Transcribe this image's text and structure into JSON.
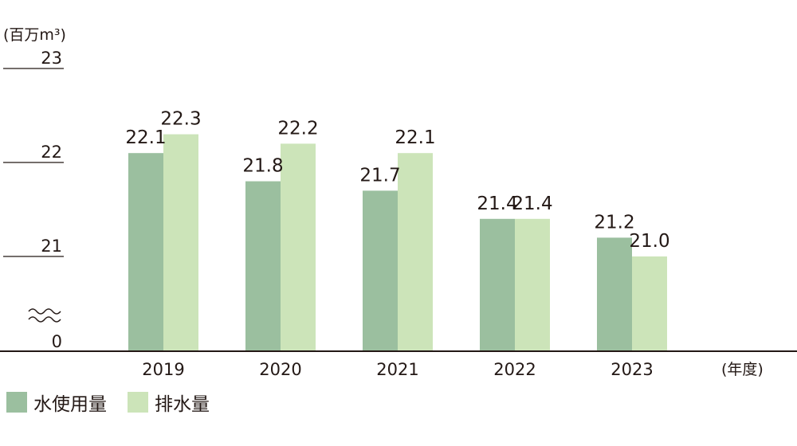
{
  "chart_data": {
    "type": "bar",
    "unit_label": "(百万m³)",
    "x_unit_label": "(年度)",
    "categories": [
      "2019",
      "2020",
      "2021",
      "2022",
      "2023"
    ],
    "series": [
      {
        "name": "水使用量",
        "color": "#9bbf9f",
        "values": [
          22.1,
          21.8,
          21.7,
          21.4,
          21.2
        ],
        "labels": [
          "22.1",
          "21.8",
          "21.7",
          "21.4",
          "21.2"
        ]
      },
      {
        "name": "排水量",
        "color": "#cce4b9",
        "values": [
          22.3,
          22.2,
          22.1,
          21.4,
          21.0
        ],
        "labels": [
          "22.3",
          "22.2",
          "22.1",
          "21.4",
          "21.0"
        ]
      }
    ],
    "y_ticks": [
      "23",
      "22",
      "21",
      "0"
    ],
    "axis_break": true,
    "ylim": [
      20.8,
      23
    ],
    "legend_position": "bottom-left",
    "grid": false
  }
}
